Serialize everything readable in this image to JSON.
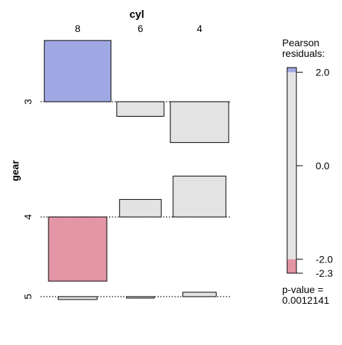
{
  "chart_data": {
    "type": "association_plot",
    "x_variable": "cyl",
    "y_variable": "gear",
    "x_levels": [
      "8",
      "6",
      "4"
    ],
    "y_levels": [
      "3",
      "4",
      "5"
    ],
    "residuals": [
      {
        "gear": "3",
        "cyl": "8",
        "residual": 2.1,
        "width": 1.2
      },
      {
        "gear": "3",
        "cyl": "6",
        "residual": -0.5,
        "width": 0.85
      },
      {
        "gear": "3",
        "cyl": "4",
        "residual": -1.4,
        "width": 1.05
      },
      {
        "gear": "4",
        "cyl": "8",
        "residual": -2.2,
        "width": 1.05
      },
      {
        "gear": "4",
        "cyl": "6",
        "residual": 0.6,
        "width": 0.75
      },
      {
        "gear": "4",
        "cyl": "4",
        "residual": 1.4,
        "width": 0.95
      },
      {
        "gear": "5",
        "cyl": "8",
        "residual": -0.1,
        "width": 0.7
      },
      {
        "gear": "5",
        "cyl": "6",
        "residual": -0.05,
        "width": 0.5
      },
      {
        "gear": "5",
        "cyl": "4",
        "residual": 0.15,
        "width": 0.6
      }
    ],
    "legend": {
      "title_line1": "Pearson",
      "title_line2": "residuals:",
      "ticks": [
        {
          "value": 2.0,
          "label": "2.0"
        },
        {
          "value": 0.0,
          "label": "0.0"
        },
        {
          "value": -2.0,
          "label": "-2.0"
        },
        {
          "value": -2.3,
          "label": "-2.3"
        }
      ],
      "range": [
        -2.3,
        2.1
      ],
      "pvalue_label": "p-value =",
      "pvalue": "0.0012141"
    },
    "colors": {
      "positive": "#9FA8E2",
      "negative": "#E396A6",
      "neutral": "#E3E3E3",
      "border": "#000000"
    }
  }
}
